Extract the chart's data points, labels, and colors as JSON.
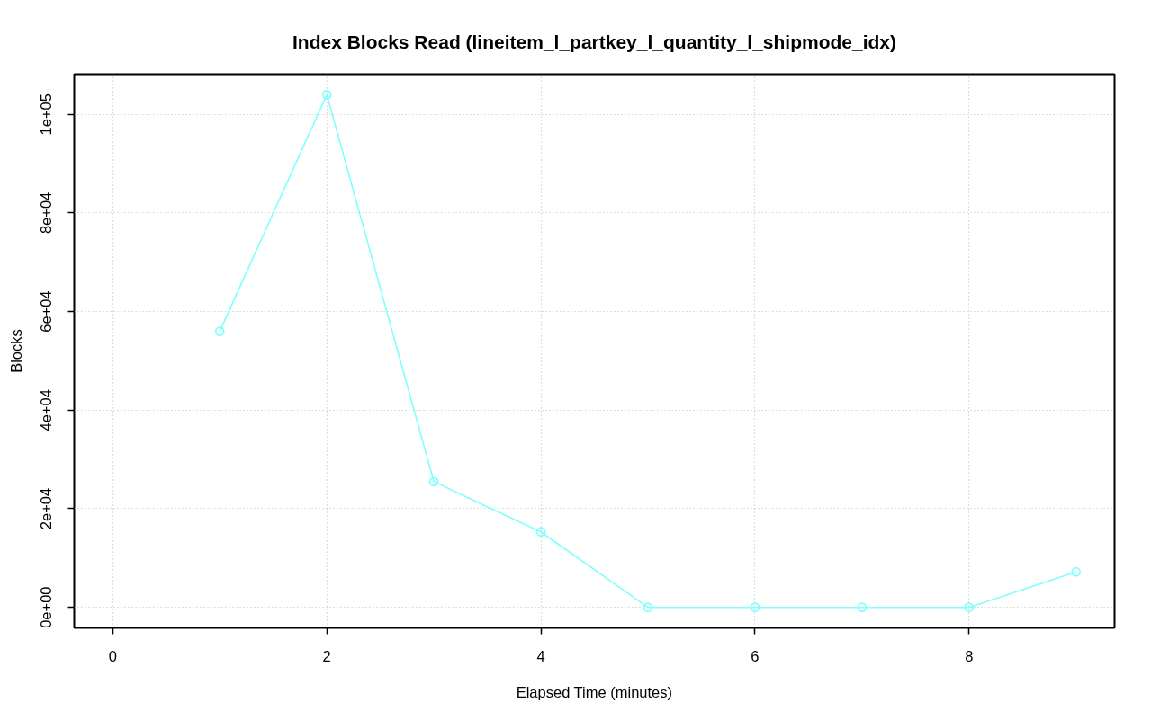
{
  "chart_data": {
    "type": "line",
    "title": "Index Blocks Read (lineitem_l_partkey_l_quantity_l_shipmode_idx)",
    "xlabel": "Elapsed Time (minutes)",
    "ylabel": "Blocks",
    "x": [
      1,
      2,
      3,
      4,
      5,
      6,
      7,
      8,
      9
    ],
    "series": [
      {
        "color": "#80ffff",
        "values": [
          56000,
          104000,
          25500,
          15300,
          0,
          0,
          0,
          0,
          7200
        ]
      }
    ],
    "xlim": [
      -0.36,
      9.36
    ],
    "ylim": [
      -4160,
      108160
    ],
    "xticks": [
      0,
      2,
      4,
      6,
      8
    ],
    "yticks": [
      {
        "value": 0,
        "label": "0e+00"
      },
      {
        "value": 20000,
        "label": "2e+04"
      },
      {
        "value": 40000,
        "label": "4e+04"
      },
      {
        "value": 60000,
        "label": "6e+04"
      },
      {
        "value": 80000,
        "label": "8e+04"
      },
      {
        "value": 100000,
        "label": "1e+05"
      }
    ],
    "grid": true,
    "marker": "circle",
    "line_style": "solid"
  }
}
